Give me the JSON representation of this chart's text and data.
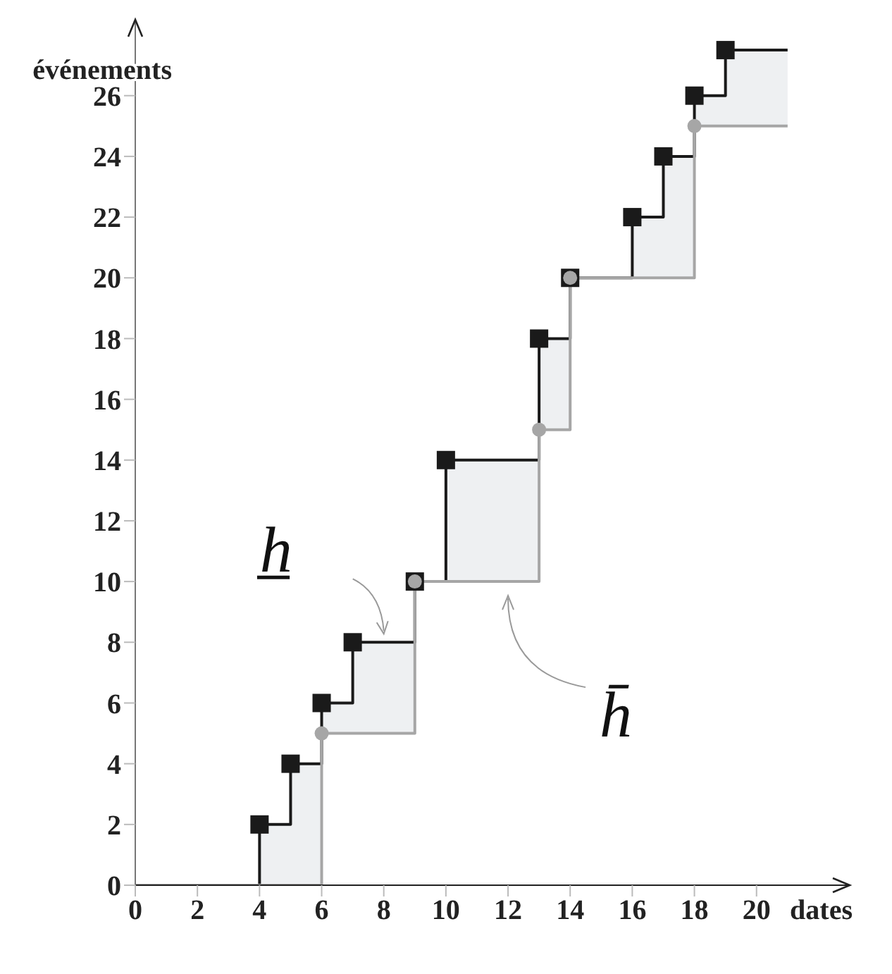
{
  "chart_data": {
    "type": "step",
    "xlabel": "dates",
    "ylabel": "événements",
    "xlim": [
      0,
      23
    ],
    "ylim": [
      0,
      28.5
    ],
    "xticks": [
      0,
      2,
      4,
      6,
      8,
      10,
      12,
      14,
      16,
      18,
      20
    ],
    "yticks": [
      0,
      2,
      4,
      6,
      8,
      10,
      12,
      14,
      16,
      18,
      20,
      22,
      24,
      26
    ],
    "series": [
      {
        "color": "#1a1a1a",
        "marker": "none",
        "x": [
          0,
          4,
          5,
          6,
          7,
          9,
          10,
          13,
          14,
          16,
          17,
          18,
          19,
          21
        ],
        "values": [
          0,
          2,
          4,
          6,
          8,
          10,
          14,
          18,
          20,
          22,
          24,
          26,
          27.5,
          27.5
        ]
      },
      {
        "color": "#a6a6a6",
        "marker": "none",
        "x": [
          0,
          6,
          9,
          13,
          14,
          18,
          21
        ],
        "values": [
          0,
          5,
          10,
          15,
          20,
          25,
          25
        ]
      },
      {
        "type": "scatter",
        "color": "#1a1a1a",
        "marker": "square",
        "x": [
          4,
          5,
          6,
          7,
          9,
          10,
          13,
          14,
          16,
          17,
          18,
          19
        ],
        "values": [
          2,
          4,
          6,
          8,
          10,
          14,
          18,
          20,
          22,
          24,
          26,
          27.5
        ]
      },
      {
        "type": "scatter",
        "color": "#a6a6a6",
        "marker": "circle",
        "x": [
          6,
          9,
          13,
          14,
          18
        ],
        "values": [
          5,
          10,
          15,
          20,
          25
        ]
      }
    ],
    "annotations": [
      {
        "text": "h̲",
        "x": 8,
        "y": 8
      },
      {
        "text": "h̄",
        "x": 12,
        "y": 10
      }
    ]
  }
}
